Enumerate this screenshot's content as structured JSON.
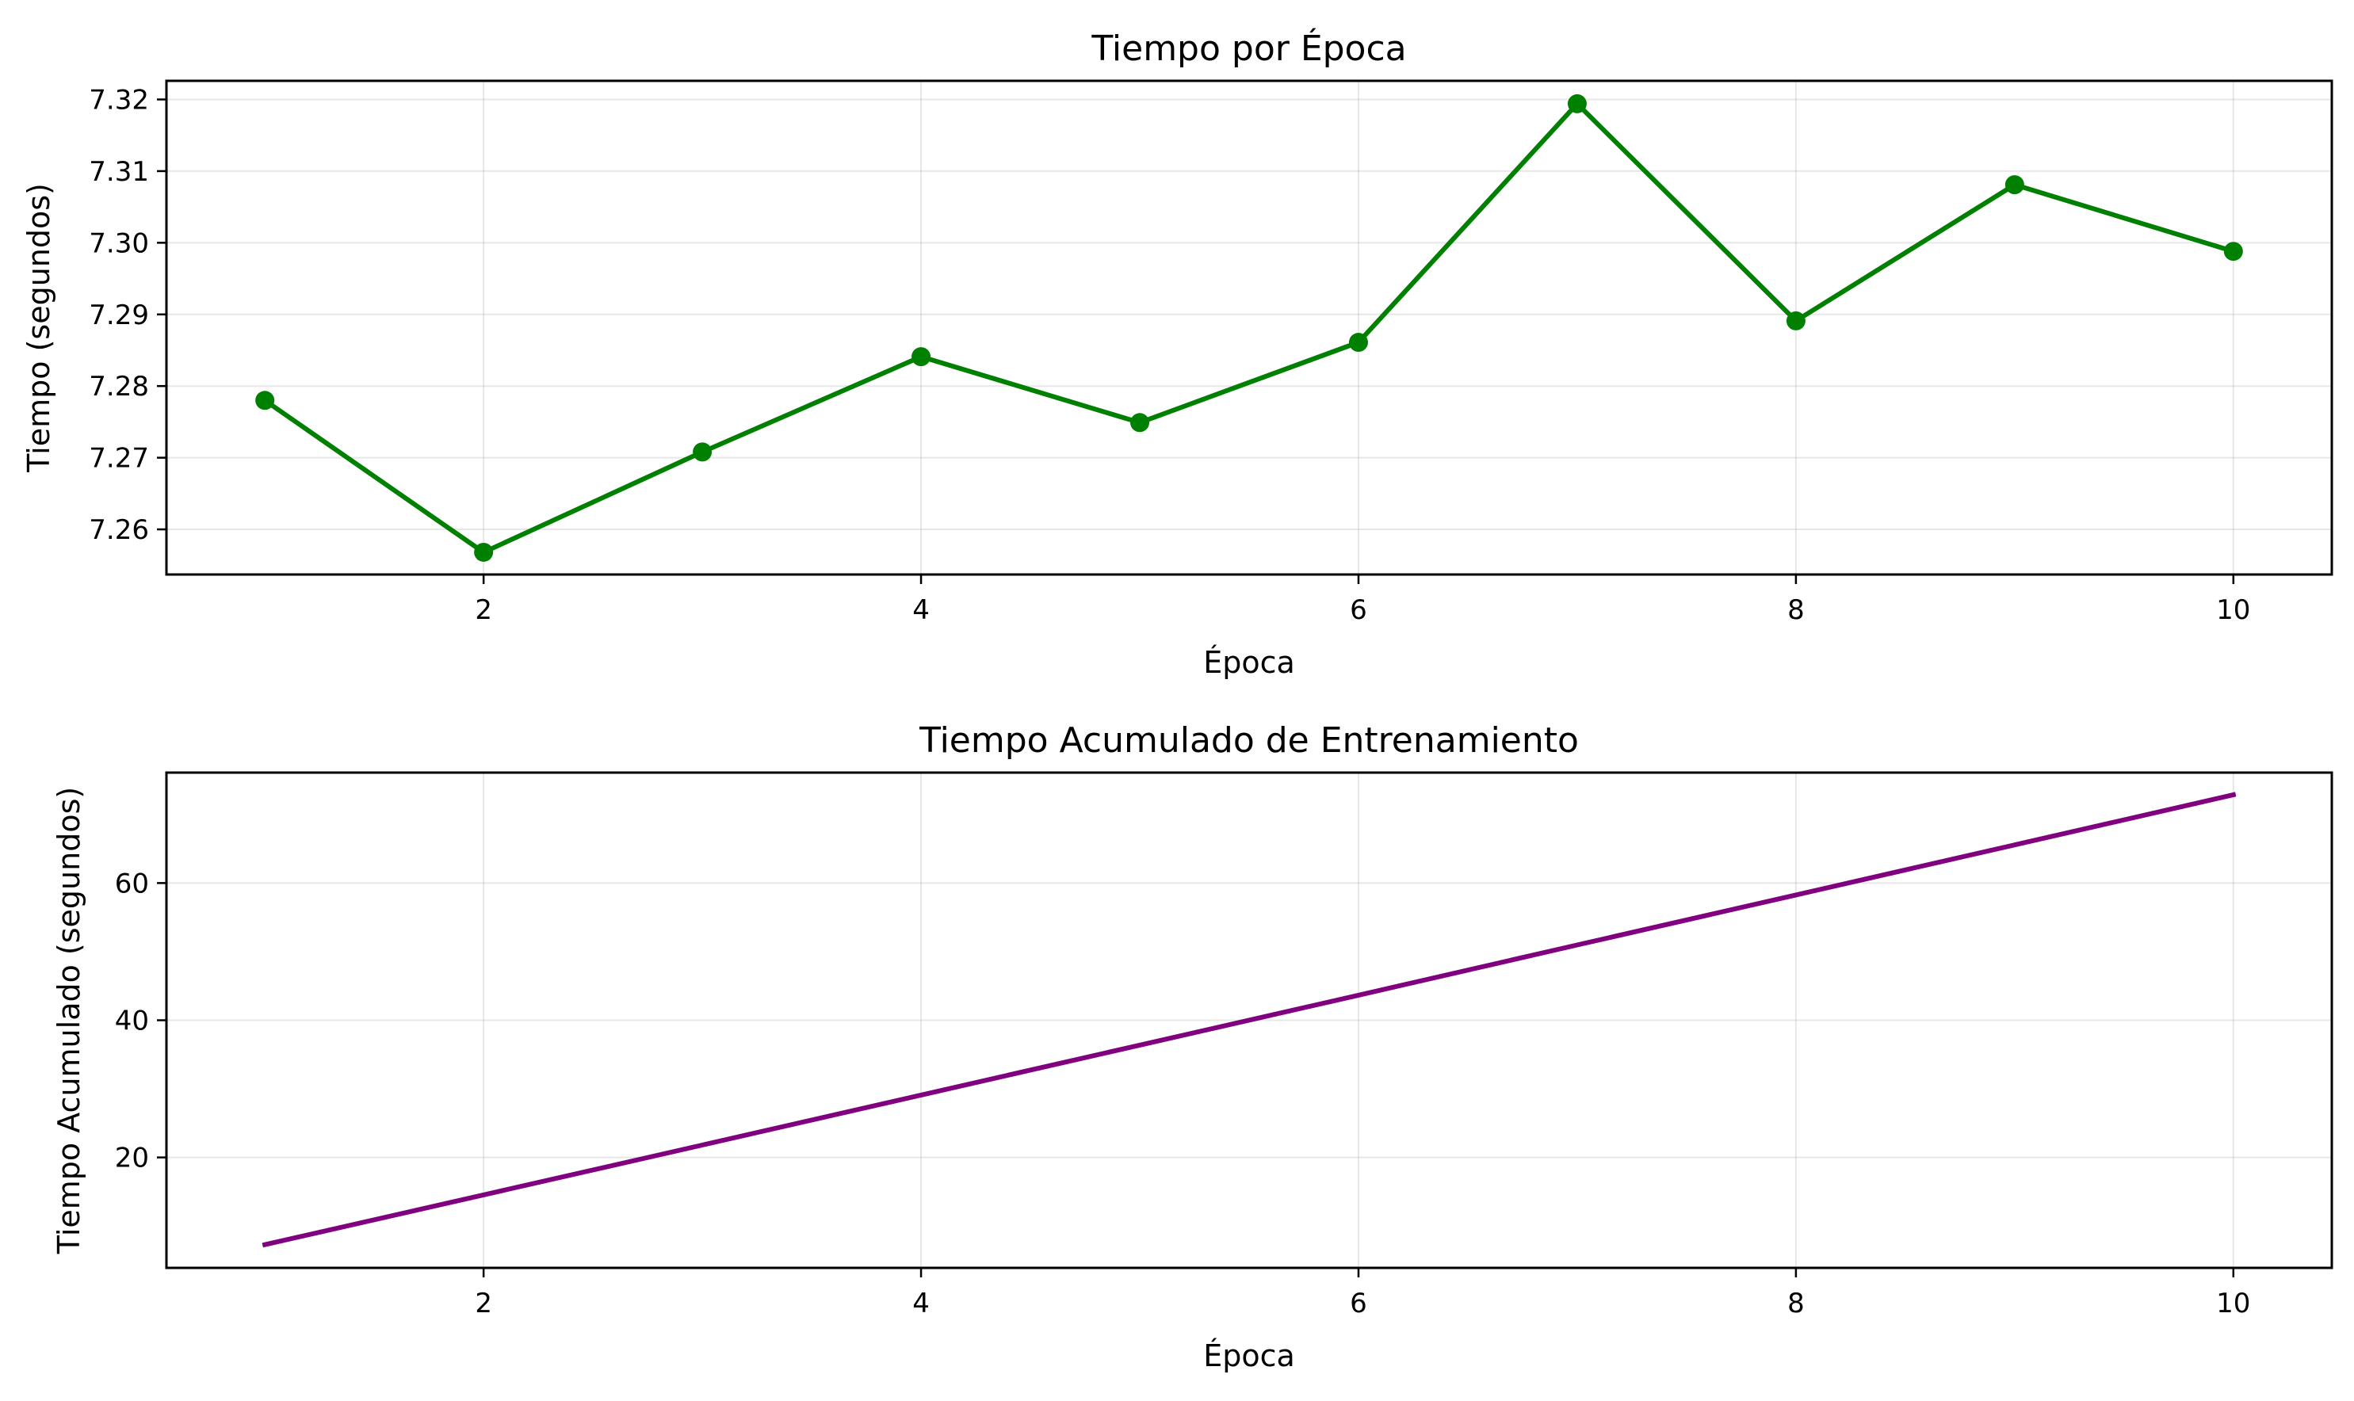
{
  "chart_data": [
    {
      "type": "line",
      "title": "Tiempo por Época",
      "xlabel": "Época",
      "ylabel": "Tiempo (segundos)",
      "xlim": [
        0.55,
        10.45
      ],
      "ylim": [
        7.2537,
        7.3226
      ],
      "xticks": [
        2,
        4,
        6,
        8,
        10
      ],
      "xtick_labels": [
        "2",
        "4",
        "6",
        "8",
        "10"
      ],
      "yticks": [
        7.26,
        7.27,
        7.28,
        7.29,
        7.3,
        7.31,
        7.32
      ],
      "ytick_labels": [
        "7.26",
        "7.27",
        "7.28",
        "7.29",
        "7.30",
        "7.31",
        "7.32"
      ],
      "grid": true,
      "markers": true,
      "color": "#008000",
      "series": [
        {
          "x": [
            1,
            2,
            3,
            4,
            5,
            6,
            7,
            8,
            9,
            10
          ],
          "values": [
            7.278,
            7.2568,
            7.2708,
            7.2841,
            7.2749,
            7.2861,
            7.3194,
            7.2891,
            7.3081,
            7.2988
          ]
        }
      ]
    },
    {
      "type": "line",
      "title": "Tiempo Acumulado de Entrenamiento",
      "xlabel": "Época",
      "ylabel": "Tiempo Acumulado (segundos)",
      "xlim": [
        0.55,
        10.45
      ],
      "ylim": [
        3.9,
        76.1
      ],
      "xticks": [
        2,
        4,
        6,
        8,
        10
      ],
      "xtick_labels": [
        "2",
        "4",
        "6",
        "8",
        "10"
      ],
      "yticks": [
        20,
        40,
        60
      ],
      "ytick_labels": [
        "20",
        "40",
        "60"
      ],
      "grid": true,
      "markers": false,
      "color": "#800080",
      "series": [
        {
          "x": [
            1,
            2,
            3,
            4,
            5,
            6,
            7,
            8,
            9,
            10
          ],
          "values": [
            7.28,
            14.54,
            21.81,
            29.09,
            36.37,
            43.65,
            50.97,
            58.26,
            65.57,
            72.87
          ]
        }
      ]
    }
  ]
}
